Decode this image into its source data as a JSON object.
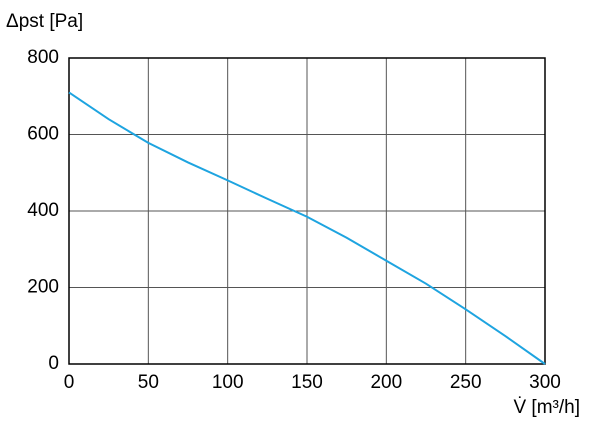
{
  "chart_data": {
    "type": "line",
    "ylabel": "Δpst [Pa]",
    "xlabel": "V̇ [m³/h]",
    "x": [
      0,
      25,
      50,
      75,
      100,
      125,
      150,
      175,
      200,
      225,
      250,
      275,
      300
    ],
    "values": [
      710,
      640,
      578,
      527,
      480,
      432,
      385,
      330,
      270,
      210,
      143,
      73,
      0
    ],
    "color": "#1ea4e0",
    "xlim": [
      0,
      300
    ],
    "xticks": [
      0,
      50,
      100,
      150,
      200,
      250,
      300
    ],
    "ylim": [
      0,
      800
    ],
    "yticks": [
      0,
      200,
      400,
      600,
      800
    ],
    "grid": true
  }
}
